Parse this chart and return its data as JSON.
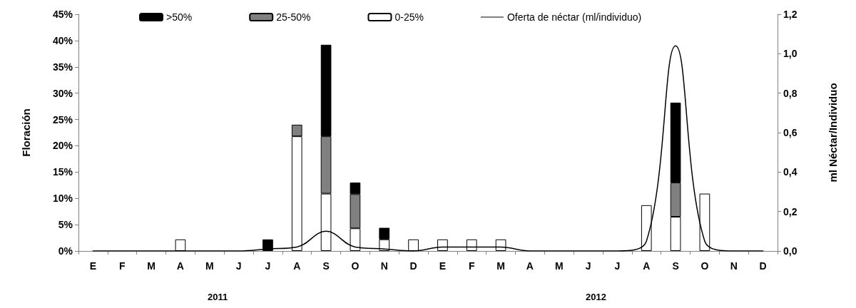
{
  "chart_data": {
    "type": "bar",
    "stacked": true,
    "categories": [
      "E",
      "F",
      "M",
      "A",
      "M",
      "J",
      "J",
      "A",
      "S",
      "O",
      "N",
      "D",
      "E",
      "F",
      "M",
      "A",
      "M",
      "J",
      "J",
      "A",
      "S",
      "O",
      "N",
      "D"
    ],
    "ylabel": "Floración",
    "y2label": "ml Néctar/Individuo",
    "annotations": [
      "2011",
      "2012"
    ],
    "series": [
      {
        "name": "0-25%",
        "color": "#ffffff",
        "values": [
          null,
          null,
          null,
          2.2,
          null,
          null,
          null,
          21.8,
          10.9,
          4.3,
          2.2,
          2.2,
          2.2,
          2.2,
          2.2,
          null,
          null,
          null,
          null,
          8.7,
          6.5,
          10.9,
          null,
          null
        ]
      },
      {
        "name": "25-50%",
        "color": "#808080",
        "values": [
          null,
          null,
          null,
          null,
          null,
          null,
          null,
          2.2,
          10.9,
          6.5,
          null,
          null,
          null,
          null,
          null,
          null,
          null,
          null,
          null,
          null,
          6.5,
          null,
          null,
          null
        ]
      },
      {
        "name": ">50%",
        "color": "#000000",
        "values": [
          null,
          null,
          null,
          null,
          null,
          null,
          2.2,
          null,
          17.4,
          2.2,
          2.2,
          null,
          null,
          null,
          null,
          null,
          null,
          null,
          null,
          null,
          15.2,
          null,
          null,
          null
        ]
      },
      {
        "name": "Oferta de néctar (ml/individuo)",
        "type": "line",
        "axis": "y2",
        "color": "#000000",
        "values": [
          0,
          0,
          0,
          0,
          0,
          0,
          0.01,
          0.02,
          0.1,
          0.02,
          0.01,
          0,
          0.02,
          0.02,
          0.02,
          0,
          0,
          0,
          0,
          0.05,
          1.04,
          0.05,
          0,
          0
        ]
      }
    ],
    "ylim": [
      0,
      45
    ],
    "yticks": [
      {
        "value": 0,
        "label": "0%"
      },
      {
        "value": 5,
        "label": "5%"
      },
      {
        "value": 10,
        "label": "10%"
      },
      {
        "value": 15,
        "label": "15%"
      },
      {
        "value": 20,
        "label": "20%"
      },
      {
        "value": 25,
        "label": "25%"
      },
      {
        "value": 30,
        "label": "30%"
      },
      {
        "value": 35,
        "label": "35%"
      },
      {
        "value": 40,
        "label": "40%"
      },
      {
        "value": 45,
        "label": "45%"
      }
    ],
    "y2lim": [
      0,
      1.2
    ],
    "y2ticks": [
      {
        "value": 0,
        "label": "0,0"
      },
      {
        "value": 0.2,
        "label": "0,2"
      },
      {
        "value": 0.4,
        "label": "0,4"
      },
      {
        "value": 0.6,
        "label": "0,6"
      },
      {
        "value": 0.8,
        "label": "0,8"
      },
      {
        "value": 1.0,
        "label": "1,0"
      },
      {
        "value": 1.2,
        "label": "1,2"
      }
    ],
    "legend": "top",
    "grid": false,
    "marker": "none",
    "line_style": "solid"
  }
}
